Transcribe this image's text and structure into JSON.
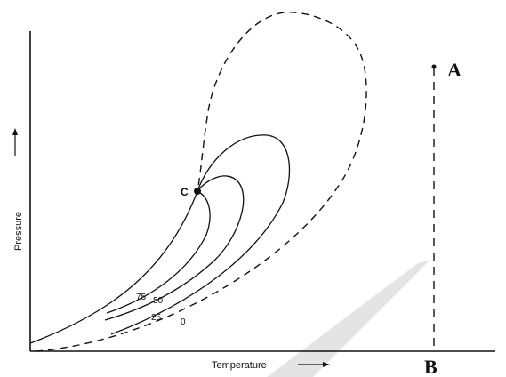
{
  "diagram": {
    "axes": {
      "x_label": "Temperature",
      "y_label": "Pressure",
      "x_arrow": "⟶",
      "y_arrow": "⟶"
    },
    "points": {
      "critical": "C",
      "top": "A",
      "bottom": "B"
    },
    "contour_labels": {
      "l75": "75",
      "l50": "50",
      "l25": "25",
      "l0": "0"
    },
    "colors": {
      "ink": "#111111",
      "watermark": "#d9d9d9"
    }
  }
}
